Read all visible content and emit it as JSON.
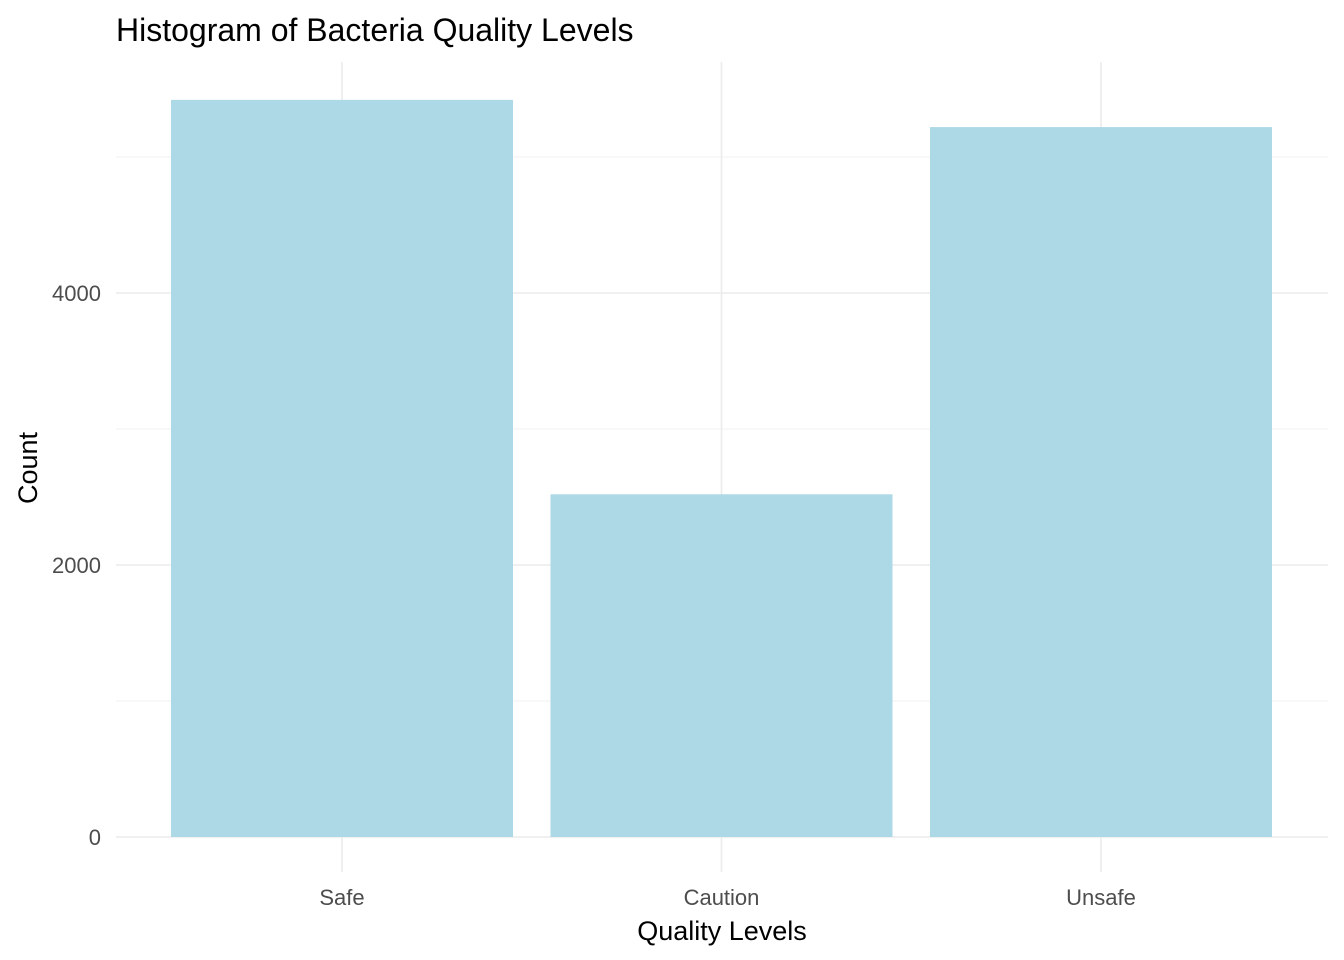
{
  "chart_data": {
    "type": "bar",
    "title": "Histogram of Bacteria Quality Levels",
    "xlabel": "Quality Levels",
    "ylabel": "Count",
    "categories": [
      "Safe",
      "Caution",
      "Unsafe"
    ],
    "values": [
      5420,
      2520,
      5220
    ],
    "ylim": [
      0,
      5700
    ],
    "y_ticks": [
      0,
      2000,
      4000
    ],
    "y_minor_ticks": [
      1000,
      3000,
      5000
    ],
    "grid": true,
    "legend": "none",
    "colors": {
      "bar": "#add8e6",
      "grid_major": "#ebebeb",
      "grid_minor": "#f2f2f2",
      "tick_text": "#4d4d4d",
      "title_text": "#000000"
    }
  }
}
